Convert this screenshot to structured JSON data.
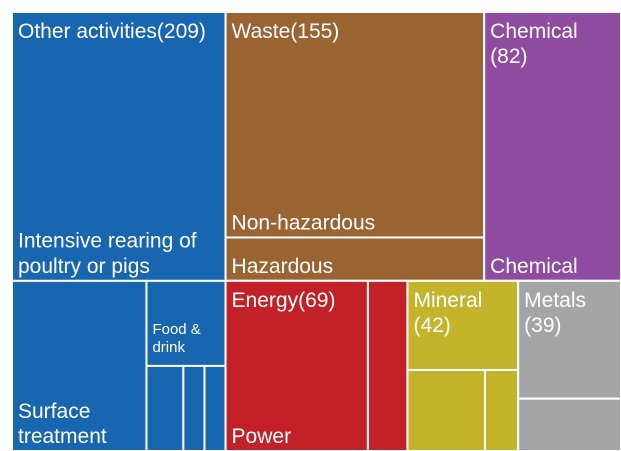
{
  "chart_data": {
    "type": "treemap",
    "categories": [
      "Other activities",
      "Waste",
      "Chemical",
      "Energy",
      "Mineral",
      "Metals"
    ],
    "values": [
      209,
      155,
      82,
      69,
      42,
      39
    ],
    "value_labels": [
      "(209)",
      "(155)",
      "(82)",
      "(69)",
      "(42)",
      "(39)"
    ],
    "colors": [
      "#1866b0",
      "#9a6332",
      "#8f4b9f",
      "#c12127",
      "#c3b42c",
      "#a5a5a5"
    ],
    "children": [
      {
        "names": [
          "Intensive rearing of poultry or pigs",
          "Surface treatment",
          "Food & drink",
          null,
          null,
          null
        ],
        "values": [
          128,
          51,
          15,
          7,
          4,
          4
        ]
      },
      {
        "names": [
          "Non-hazardous",
          "Hazardous"
        ],
        "values": [
          130,
          25
        ]
      },
      {
        "names": [
          "Chemical"
        ],
        "values": [
          82
        ]
      },
      {
        "names": [
          "Power",
          null
        ],
        "values": [
          54,
          15
        ]
      },
      {
        "names": [
          null,
          null,
          null
        ],
        "values": [
          22,
          14,
          6
        ]
      },
      {
        "names": [
          null,
          null
        ],
        "values": [
          27,
          12
        ]
      }
    ]
  }
}
